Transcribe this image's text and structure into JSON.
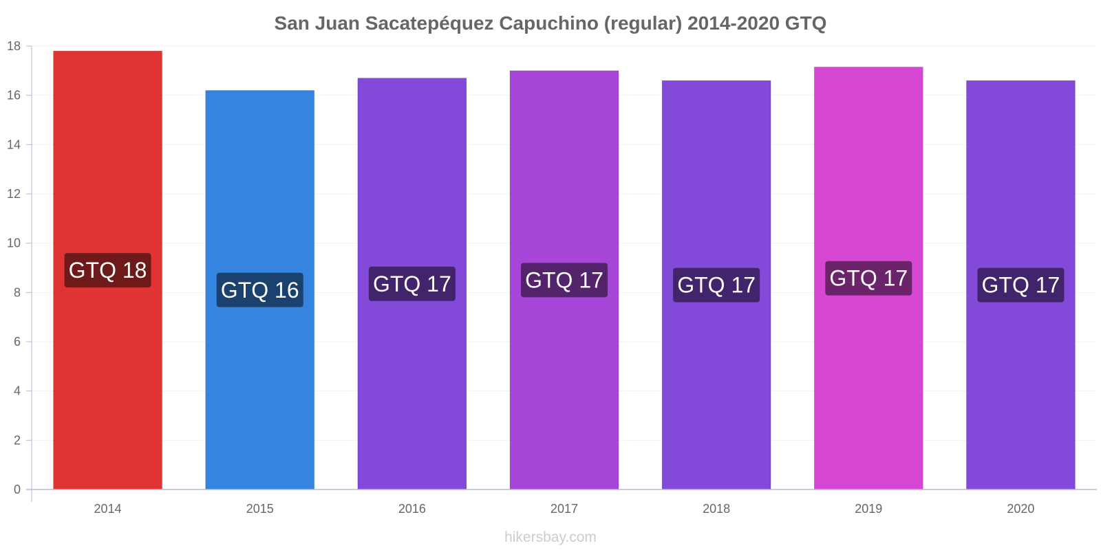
{
  "chart_data": {
    "type": "bar",
    "title": "San Juan Sacatepéquez Capuchino (regular) 2014-2020 GTQ",
    "categories": [
      "2014",
      "2015",
      "2016",
      "2017",
      "2018",
      "2019",
      "2020"
    ],
    "values": [
      17.8,
      16.2,
      16.7,
      17.0,
      16.6,
      17.15,
      16.6
    ],
    "data_labels": [
      "GTQ 18",
      "GTQ 16",
      "GTQ 17",
      "GTQ 17",
      "GTQ 17",
      "GTQ 17",
      "GTQ 17"
    ],
    "bar_colors": [
      "#e03434",
      "#3584e0",
      "#8349d9",
      "#a746d9",
      "#8349d9",
      "#d647d4",
      "#8349d9"
    ],
    "label_bg_colors": [
      "#6e1a1a",
      "#1b426e",
      "#41246c",
      "#53236c",
      "#41246c",
      "#6b236a",
      "#41246c"
    ],
    "y_ticks": [
      0,
      2,
      4,
      6,
      8,
      10,
      12,
      14,
      16,
      18
    ],
    "ylim": [
      0,
      18
    ],
    "xlabel": "",
    "ylabel": "",
    "grid": true,
    "legend": "none"
  },
  "watermark": "hikersbay.com",
  "colors": {
    "title": "#666666",
    "tick_text": "#666666",
    "axis": "#b9b9d0",
    "grid": "#f2f2f2",
    "watermark": "#cccccc"
  }
}
